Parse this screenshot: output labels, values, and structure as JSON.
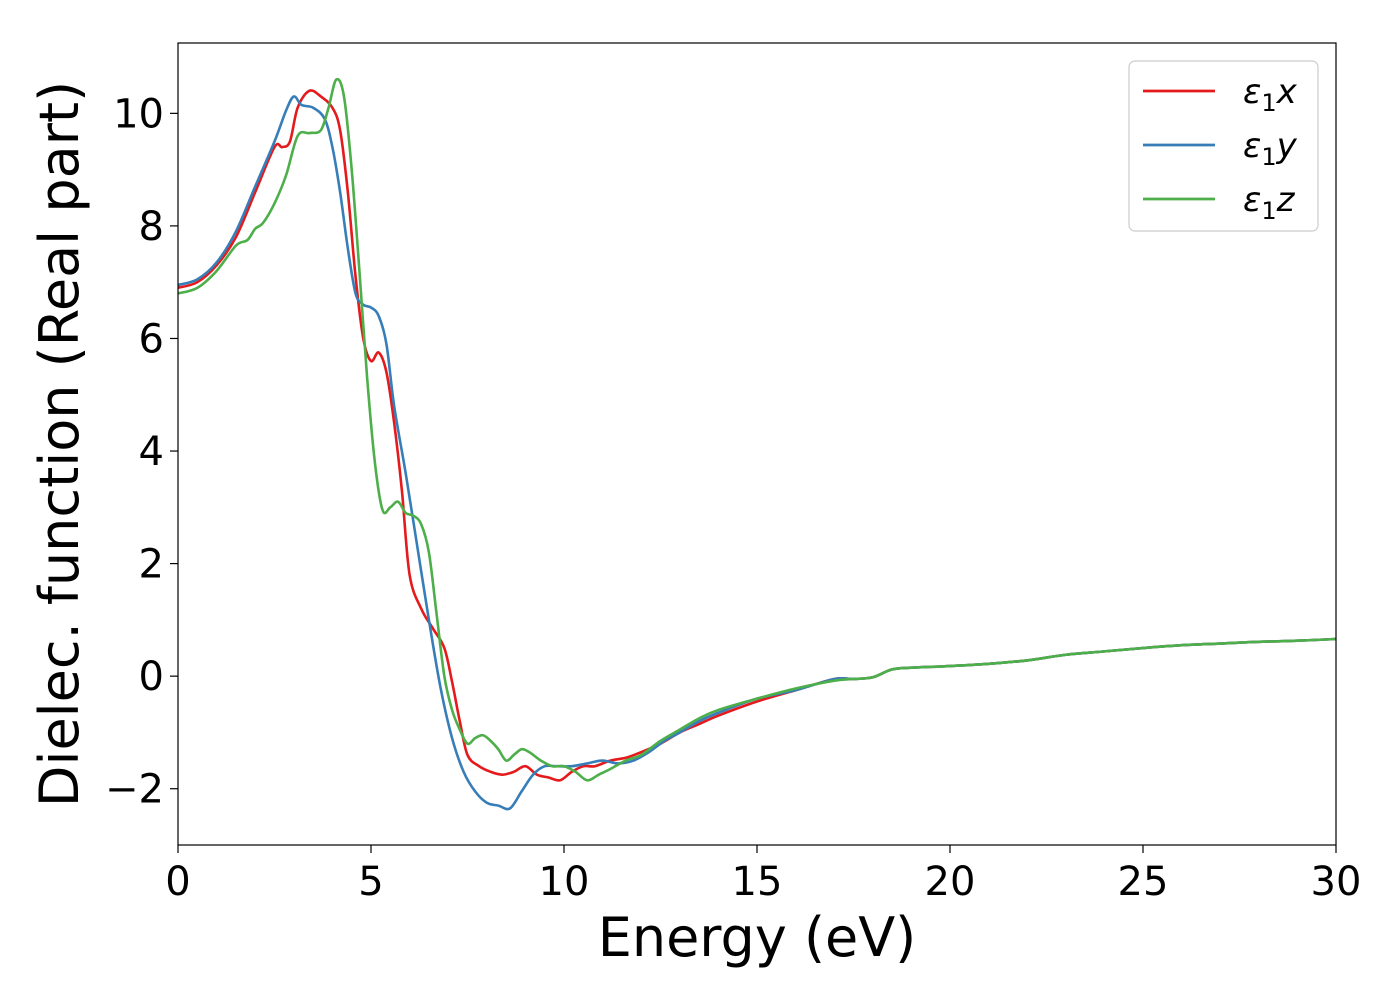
{
  "chart_data": {
    "type": "line",
    "xlabel": "Energy (eV)",
    "ylabel": "Dielec. function (Real part)",
    "xlim": [
      0,
      30
    ],
    "ylim": [
      -3,
      11.25
    ],
    "xticks": [
      0,
      5,
      10,
      15,
      20,
      25,
      30
    ],
    "xtick_labels": [
      "0",
      "5",
      "10",
      "15",
      "20",
      "25",
      "30"
    ],
    "yticks": [
      -2,
      0,
      2,
      4,
      6,
      8,
      10
    ],
    "ytick_labels": [
      "−2",
      "0",
      "2",
      "4",
      "6",
      "8",
      "10"
    ],
    "grid": false,
    "legend_position": "top-right",
    "series": [
      {
        "name": "ε",
        "subscript": "1",
        "suffix": "x",
        "color": "#e41a1c",
        "x": [
          0,
          0.5,
          1.0,
          1.5,
          2.0,
          2.5,
          2.7,
          2.9,
          3.1,
          3.4,
          3.7,
          4.0,
          4.2,
          4.4,
          4.6,
          4.8,
          5.0,
          5.2,
          5.4,
          5.6,
          5.8,
          6.0,
          6.3,
          6.6,
          6.9,
          7.1,
          7.3,
          7.5,
          7.8,
          8.1,
          8.4,
          8.7,
          9.0,
          9.3,
          9.6,
          9.9,
          10.2,
          10.5,
          10.8,
          11.2,
          11.6,
          12.0,
          12.5,
          13.0,
          13.5,
          14.0,
          15.0,
          16.0,
          17.0,
          17.5,
          18.0,
          18.5,
          19.0,
          20.0,
          21.0,
          22.0,
          23.0,
          24.0,
          25.0,
          26.0,
          27.0,
          28.0,
          29.0,
          30.0
        ],
        "y": [
          6.9,
          7.0,
          7.3,
          7.8,
          8.6,
          9.4,
          9.4,
          9.5,
          10.1,
          10.4,
          10.3,
          10.1,
          9.7,
          8.6,
          7.1,
          6.0,
          5.6,
          5.75,
          5.4,
          4.5,
          3.3,
          1.8,
          1.2,
          0.85,
          0.5,
          -0.1,
          -0.8,
          -1.4,
          -1.6,
          -1.7,
          -1.75,
          -1.7,
          -1.6,
          -1.75,
          -1.8,
          -1.85,
          -1.7,
          -1.6,
          -1.6,
          -1.5,
          -1.45,
          -1.35,
          -1.2,
          -1.0,
          -0.85,
          -0.7,
          -0.45,
          -0.25,
          -0.05,
          -0.05,
          -0.02,
          0.12,
          0.15,
          0.18,
          0.22,
          0.28,
          0.38,
          0.44,
          0.5,
          0.55,
          0.58,
          0.61,
          0.63,
          0.66
        ]
      },
      {
        "name": "ε",
        "subscript": "1",
        "suffix": "y",
        "color": "#377eb8",
        "x": [
          0,
          0.5,
          1.0,
          1.5,
          2.0,
          2.5,
          2.8,
          3.0,
          3.2,
          3.5,
          3.8,
          4.0,
          4.2,
          4.4,
          4.6,
          4.8,
          5.0,
          5.2,
          5.4,
          5.6,
          5.9,
          6.2,
          6.5,
          6.8,
          7.1,
          7.4,
          7.7,
          8.0,
          8.3,
          8.6,
          8.9,
          9.2,
          9.5,
          9.8,
          10.2,
          10.6,
          11.0,
          11.4,
          11.8,
          12.2,
          12.6,
          13.0,
          13.5,
          14.0,
          15.0,
          16.0,
          17.0,
          17.5,
          18.0,
          18.5,
          19.0,
          20.0,
          21.0,
          22.0,
          23.0,
          24.0,
          25.0,
          26.0,
          27.0,
          28.0,
          29.0,
          30.0
        ],
        "y": [
          6.95,
          7.05,
          7.35,
          7.9,
          8.7,
          9.5,
          10.05,
          10.3,
          10.15,
          10.1,
          9.9,
          9.4,
          8.6,
          7.6,
          6.8,
          6.6,
          6.55,
          6.4,
          5.9,
          4.8,
          3.6,
          2.3,
          1.0,
          -0.2,
          -1.1,
          -1.7,
          -2.05,
          -2.25,
          -2.3,
          -2.35,
          -2.05,
          -1.75,
          -1.6,
          -1.6,
          -1.6,
          -1.55,
          -1.5,
          -1.55,
          -1.5,
          -1.35,
          -1.15,
          -1.0,
          -0.8,
          -0.65,
          -0.4,
          -0.25,
          -0.05,
          -0.05,
          -0.02,
          0.12,
          0.15,
          0.18,
          0.22,
          0.28,
          0.38,
          0.44,
          0.5,
          0.55,
          0.58,
          0.61,
          0.63,
          0.66
        ]
      },
      {
        "name": "ε",
        "subscript": "1",
        "suffix": "z",
        "color": "#4daf4a",
        "x": [
          0,
          0.5,
          1.0,
          1.5,
          1.8,
          2.0,
          2.2,
          2.5,
          2.8,
          3.1,
          3.4,
          3.7,
          3.9,
          4.1,
          4.3,
          4.5,
          4.7,
          4.9,
          5.1,
          5.3,
          5.5,
          5.7,
          5.9,
          6.1,
          6.3,
          6.5,
          6.7,
          6.9,
          7.1,
          7.3,
          7.5,
          7.7,
          7.9,
          8.1,
          8.3,
          8.5,
          8.7,
          8.9,
          9.1,
          9.4,
          9.7,
          10.0,
          10.3,
          10.6,
          10.9,
          11.2,
          11.6,
          12.0,
          12.5,
          13.0,
          13.5,
          14.0,
          15.0,
          16.0,
          17.0,
          17.5,
          18.0,
          18.5,
          19.0,
          20.0,
          21.0,
          22.0,
          23.0,
          24.0,
          25.0,
          26.0,
          27.0,
          28.0,
          29.0,
          30.0
        ],
        "y": [
          6.8,
          6.9,
          7.2,
          7.65,
          7.75,
          7.95,
          8.05,
          8.4,
          8.9,
          9.6,
          9.65,
          9.7,
          10.1,
          10.6,
          10.3,
          9.0,
          7.2,
          5.3,
          3.8,
          2.95,
          3.0,
          3.1,
          2.9,
          2.85,
          2.7,
          2.2,
          1.1,
          0.0,
          -0.6,
          -0.95,
          -1.2,
          -1.1,
          -1.05,
          -1.15,
          -1.3,
          -1.5,
          -1.4,
          -1.3,
          -1.35,
          -1.5,
          -1.6,
          -1.6,
          -1.7,
          -1.85,
          -1.75,
          -1.65,
          -1.5,
          -1.4,
          -1.15,
          -0.95,
          -0.75,
          -0.6,
          -0.4,
          -0.22,
          -0.08,
          -0.05,
          -0.02,
          0.12,
          0.15,
          0.18,
          0.22,
          0.28,
          0.38,
          0.44,
          0.5,
          0.55,
          0.58,
          0.61,
          0.63,
          0.66
        ]
      }
    ]
  }
}
